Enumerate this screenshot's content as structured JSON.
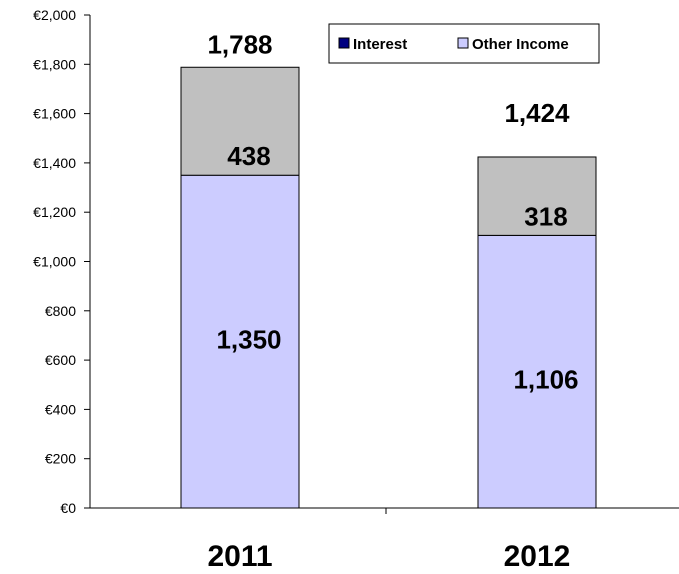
{
  "chart_data": {
    "type": "bar",
    "stacked": true,
    "categories": [
      "2011",
      "2012"
    ],
    "series": [
      {
        "name": "Other Income",
        "values": [
          1350,
          1106
        ],
        "color": "#ccccff"
      },
      {
        "name": "Interest",
        "values": [
          438,
          318
        ],
        "color": "#c0c0c0"
      }
    ],
    "legend": [
      {
        "name": "Interest",
        "color": "#000080"
      },
      {
        "name": "Other Income",
        "color": "#ccccff"
      }
    ],
    "segment_labels": [
      [
        "1,350",
        "438"
      ],
      [
        "1,106",
        "318"
      ]
    ],
    "totals": [
      1788,
      1424
    ],
    "total_labels": [
      "1,788",
      "1,424"
    ],
    "ylim": [
      0,
      2000
    ],
    "yticks": [
      0,
      200,
      400,
      600,
      800,
      1000,
      1200,
      1400,
      1600,
      1800,
      2000
    ],
    "ytick_labels": [
      "€0",
      "€200",
      "€400",
      "€600",
      "€800",
      "€1,000",
      "€1,200",
      "€1,400",
      "€1,600",
      "€1,800",
      "€2,000"
    ],
    "legend_position": "top-right",
    "grid": false
  }
}
